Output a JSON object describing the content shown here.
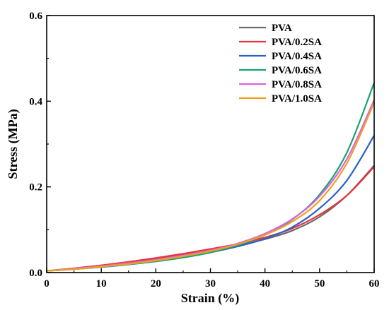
{
  "chart_data": {
    "type": "line",
    "xlabel": "Strain (%)",
    "ylabel": "Stress (MPa)",
    "xlim": [
      0,
      60
    ],
    "ylim": [
      0,
      0.6
    ],
    "x_ticks": [
      0,
      10,
      20,
      30,
      40,
      50,
      60
    ],
    "y_ticks": [
      0.0,
      0.2,
      0.4,
      0.6
    ],
    "x_tick_labels": [
      "0",
      "10",
      "20",
      "30",
      "40",
      "50",
      "60"
    ],
    "y_tick_labels": [
      "0.0",
      "0.2",
      "0.4",
      "0.6"
    ],
    "grid": false,
    "legend_position": "top-right",
    "x": [
      0,
      5,
      10,
      15,
      20,
      25,
      30,
      35,
      40,
      45,
      50,
      55,
      60
    ],
    "series": [
      {
        "name": "PVA",
        "color": "#6b6b6b",
        "values": [
          0.004,
          0.009,
          0.015,
          0.022,
          0.031,
          0.041,
          0.052,
          0.064,
          0.078,
          0.098,
          0.13,
          0.18,
          0.25
        ]
      },
      {
        "name": "PVA/0.2SA",
        "color": "#e8333c",
        "values": [
          0.004,
          0.01,
          0.017,
          0.025,
          0.034,
          0.044,
          0.055,
          0.067,
          0.082,
          0.103,
          0.135,
          0.18,
          0.247
        ]
      },
      {
        "name": "PVA/0.4SA",
        "color": "#2a62c8",
        "values": [
          0.004,
          0.008,
          0.013,
          0.019,
          0.027,
          0.036,
          0.047,
          0.061,
          0.079,
          0.106,
          0.15,
          0.215,
          0.32
        ]
      },
      {
        "name": "PVA/0.6SA",
        "color": "#1aa36b",
        "values": [
          0.004,
          0.008,
          0.013,
          0.019,
          0.026,
          0.035,
          0.047,
          0.064,
          0.088,
          0.124,
          0.182,
          0.28,
          0.443
        ]
      },
      {
        "name": "PVA/0.8SA",
        "color": "#d966e0",
        "values": [
          0.004,
          0.009,
          0.015,
          0.022,
          0.03,
          0.04,
          0.052,
          0.068,
          0.091,
          0.125,
          0.178,
          0.265,
          0.403
        ]
      },
      {
        "name": "PVA/1.0SA",
        "color": "#f0a020",
        "values": [
          0.004,
          0.008,
          0.014,
          0.02,
          0.028,
          0.038,
          0.05,
          0.066,
          0.088,
          0.119,
          0.168,
          0.255,
          0.397
        ]
      }
    ]
  }
}
